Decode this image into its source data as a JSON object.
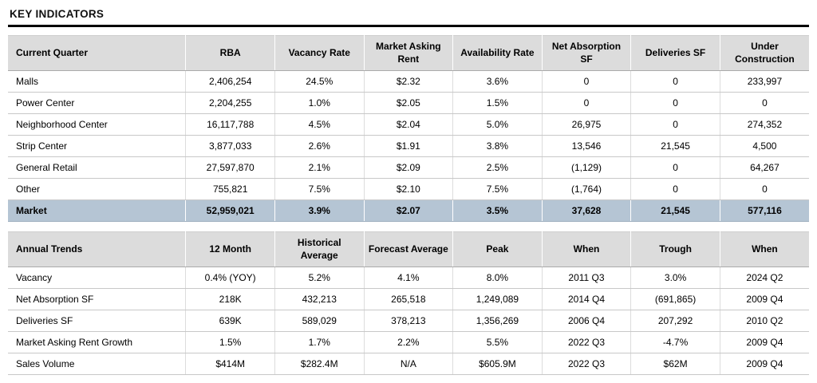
{
  "section_title": "KEY INDICATORS",
  "colors": {
    "header_bg": "#dcdcdc",
    "total_row_bg": "#b5c5d4",
    "negative_text": "#e8362a",
    "title_rule": "#000000"
  },
  "current_quarter_table": {
    "columns": [
      "Current Quarter",
      "RBA",
      "Vacancy Rate",
      "Market Asking Rent",
      "Availability Rate",
      "Net Absorption SF",
      "Deliveries SF",
      "Under Construction"
    ],
    "rows": [
      {
        "label": "Malls",
        "values": [
          "2,406,254",
          "24.5%",
          "$2.32",
          "3.6%",
          "0",
          "0",
          "233,997"
        ]
      },
      {
        "label": "Power Center",
        "values": [
          "2,204,255",
          "1.0%",
          "$2.05",
          "1.5%",
          "0",
          "0",
          "0"
        ]
      },
      {
        "label": "Neighborhood Center",
        "values": [
          "16,117,788",
          "4.5%",
          "$2.04",
          "5.0%",
          "26,975",
          "0",
          "274,352"
        ]
      },
      {
        "label": "Strip Center",
        "values": [
          "3,877,033",
          "2.6%",
          "$1.91",
          "3.8%",
          "13,546",
          "21,545",
          "4,500"
        ]
      },
      {
        "label": "General Retail",
        "values": [
          "27,597,870",
          "2.1%",
          "$2.09",
          "2.5%",
          "(1,129)",
          "0",
          "64,267"
        ]
      },
      {
        "label": "Other",
        "values": [
          "755,821",
          "7.5%",
          "$2.10",
          "7.5%",
          "(1,764)",
          "0",
          "0"
        ]
      }
    ],
    "total_row": {
      "label": "Market",
      "values": [
        "52,959,021",
        "3.9%",
        "$2.07",
        "3.5%",
        "37,628",
        "21,545",
        "577,116"
      ]
    }
  },
  "annual_trends_table": {
    "columns": [
      "Annual Trends",
      "12 Month",
      "Historical Average",
      "Forecast Average",
      "Peak",
      "When",
      "Trough",
      "When"
    ],
    "rows": [
      {
        "label": "Vacancy",
        "values": [
          "0.4% (YOY)",
          "5.2%",
          "4.1%",
          "8.0%",
          "2011 Q3",
          "3.0%",
          "2024 Q2"
        ]
      },
      {
        "label": "Net Absorption SF",
        "values": [
          "218K",
          "432,213",
          "265,518",
          "1,249,089",
          "2014 Q4",
          "(691,865)",
          "2009 Q4"
        ]
      },
      {
        "label": "Deliveries SF",
        "values": [
          "639K",
          "589,029",
          "378,213",
          "1,356,269",
          "2006 Q4",
          "207,292",
          "2010 Q2"
        ]
      },
      {
        "label": "Market Asking Rent Growth",
        "values": [
          "1.5%",
          "1.7%",
          "2.2%",
          "5.5%",
          "2022 Q3",
          "-4.7%",
          "2009 Q4"
        ]
      },
      {
        "label": "Sales Volume",
        "values": [
          "$414M",
          "$282.4M",
          "N/A",
          "$605.9M",
          "2022 Q3",
          "$62M",
          "2009 Q4"
        ]
      }
    ]
  }
}
